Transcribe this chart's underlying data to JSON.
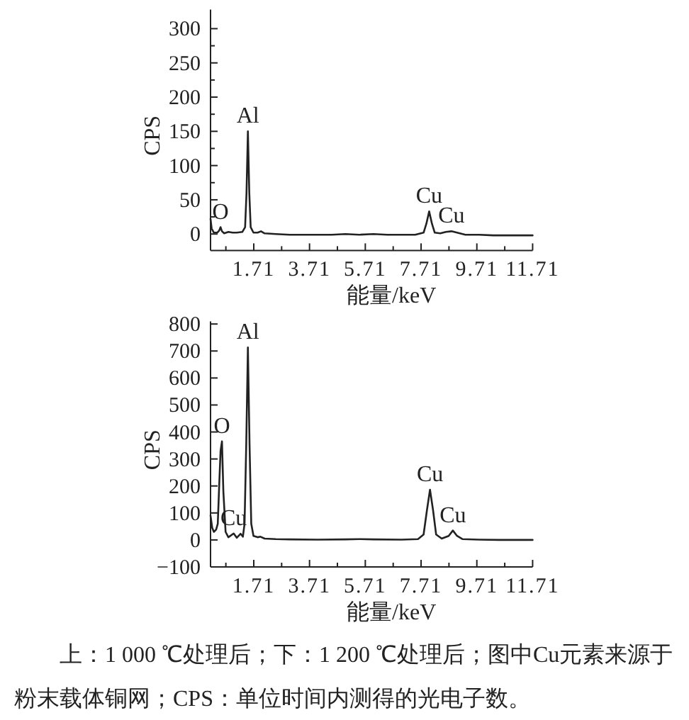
{
  "chart_data": [
    {
      "type": "line",
      "xlabel": "能量/keV",
      "ylabel": "CPS",
      "color": "#222222",
      "xlim": [
        0.16,
        11.71
      ],
      "ylim": [
        -24,
        328
      ],
      "xticks": [
        {
          "value": 0.71,
          "label": null
        },
        1.71,
        {
          "value": 2.71,
          "label": null
        },
        3.71,
        {
          "value": 4.71,
          "label": null
        },
        5.71,
        {
          "value": 6.71,
          "label": null
        },
        7.71,
        {
          "value": 8.71,
          "label": null
        },
        9.71,
        {
          "value": 10.71,
          "label": null
        },
        11.71
      ],
      "yticks": [
        0,
        {
          "value": 25,
          "label": null
        },
        50,
        {
          "value": 75,
          "label": null
        },
        100,
        {
          "value": 125,
          "label": null
        },
        150,
        {
          "value": 175,
          "label": null
        },
        200,
        {
          "value": 225,
          "label": null
        },
        250,
        {
          "value": 275,
          "label": null
        },
        300
      ],
      "x": [
        0.16,
        0.2,
        0.28,
        0.4,
        0.47,
        0.52,
        0.57,
        0.65,
        0.8,
        0.95,
        1.1,
        1.3,
        1.4,
        1.45,
        1.5,
        1.55,
        1.6,
        1.7,
        1.85,
        1.97,
        2.1,
        2.5,
        3.0,
        3.5,
        4.0,
        4.5,
        5.0,
        5.5,
        6.0,
        6.5,
        7.0,
        7.5,
        7.8,
        7.9,
        8.0,
        8.1,
        8.2,
        8.4,
        8.6,
        8.8,
        9.0,
        9.3,
        9.8,
        10.3,
        10.8,
        11.3,
        11.71
      ],
      "values": [
        22,
        8,
        2,
        2,
        5,
        10,
        4,
        1,
        3,
        2,
        2,
        3,
        10,
        60,
        150,
        60,
        10,
        2,
        2,
        4,
        1,
        0,
        -1,
        -1,
        -1,
        -1,
        0,
        -1,
        0,
        -1,
        -1,
        -1,
        2,
        15,
        33,
        15,
        2,
        1,
        3,
        4,
        2,
        -1,
        -1,
        -2,
        -2,
        -2,
        -2
      ],
      "annotations": [
        {
          "text": "O",
          "x": 0.52,
          "y": 10
        },
        {
          "text": "Al",
          "x": 1.5,
          "y": 150
        },
        {
          "text": "Cu",
          "x": 8.0,
          "y": 33
        },
        {
          "text": "Cu",
          "x": 8.8,
          "y": 4
        }
      ]
    },
    {
      "type": "line",
      "xlabel": "能量/keV",
      "ylabel": "CPS",
      "color": "#222222",
      "xlim": [
        0.16,
        11.71
      ],
      "ylim": [
        -100,
        810
      ],
      "xticks": [
        {
          "value": 0.71,
          "label": null
        },
        1.71,
        {
          "value": 2.71,
          "label": null
        },
        3.71,
        {
          "value": 4.71,
          "label": null
        },
        5.71,
        {
          "value": 6.71,
          "label": null
        },
        7.71,
        {
          "value": 8.71,
          "label": null
        },
        9.71,
        {
          "value": 10.71,
          "label": null
        },
        11.71
      ],
      "yticks": [
        {
          "value": -100,
          "label": "−100"
        },
        0,
        100,
        200,
        300,
        400,
        500,
        600,
        700,
        800
      ],
      "x": [
        0.16,
        0.22,
        0.28,
        0.36,
        0.42,
        0.47,
        0.52,
        0.57,
        0.62,
        0.7,
        0.8,
        0.99,
        1.1,
        1.24,
        1.32,
        1.38,
        1.44,
        1.5,
        1.56,
        1.62,
        1.7,
        1.85,
        1.95,
        2.1,
        2.5,
        3.0,
        4.0,
        5.0,
        5.5,
        6.0,
        7.0,
        7.6,
        7.8,
        7.92,
        8.03,
        8.14,
        8.25,
        8.45,
        8.7,
        8.85,
        9.0,
        9.2,
        9.8,
        10.5,
        11.0,
        11.71
      ],
      "values": [
        90,
        45,
        30,
        38,
        60,
        200,
        330,
        365,
        180,
        30,
        10,
        24,
        8,
        23,
        12,
        60,
        350,
        713,
        350,
        60,
        15,
        10,
        12,
        5,
        3,
        2,
        1,
        2,
        3,
        2,
        1,
        3,
        20,
        110,
        186,
        110,
        20,
        5,
        15,
        35,
        15,
        3,
        1,
        0,
        0,
        0
      ],
      "annotations": [
        {
          "text": "O",
          "x": 0.57,
          "y": 365
        },
        {
          "text": "Cu",
          "x": 0.99,
          "y": 24
        },
        {
          "text": "Al",
          "x": 1.5,
          "y": 713
        },
        {
          "text": "Cu",
          "x": 8.03,
          "y": 186
        },
        {
          "text": "Cu",
          "x": 8.85,
          "y": 35
        },
        "上：1 000 ℃处理后；下：1 200 ℃处理后；图中Cu元素来源于粉末载体铜网；CPS：单位时间内测得的光电子数。"
      ]
    }
  ]
}
